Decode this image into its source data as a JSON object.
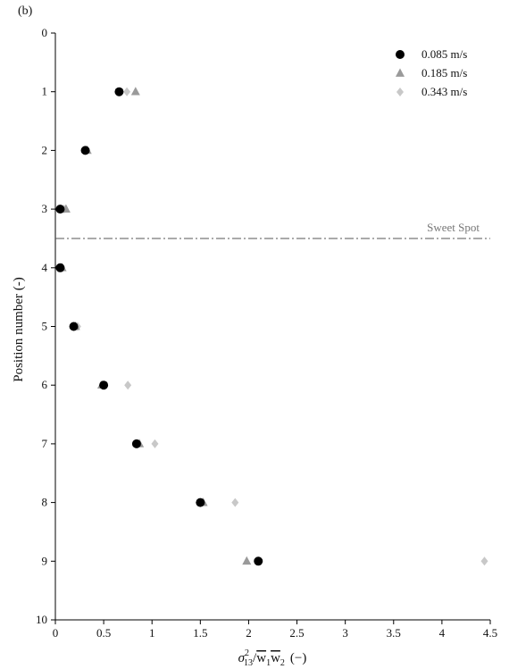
{
  "chart_data": {
    "type": "scatter",
    "panel_label": "(b)",
    "ylabel": "Position number (-)",
    "xlabel_parts": {
      "sigma": "σ",
      "sigma_sub": "13",
      "sigma_sup": "2",
      "slash": "/",
      "den_w1": "w",
      "den_w1_sub": "1",
      "den_w2": "w",
      "den_w2_sub": "2",
      "unit": "(−)"
    },
    "xlim": [
      0,
      4.5
    ],
    "ylim": [
      0,
      10
    ],
    "y_inverted": true,
    "x_ticks": [
      "0",
      "0.5",
      "1",
      "1.5",
      "2",
      "2.5",
      "3",
      "3.5",
      "4",
      "4.5"
    ],
    "y_ticks": [
      "0",
      "1",
      "2",
      "3",
      "4",
      "5",
      "6",
      "7",
      "8",
      "9",
      "10"
    ],
    "legend_position": "top-right",
    "reference_line": {
      "y": 3.5,
      "style": "dash-dot",
      "label": "Sweet Spot",
      "color": "#555555"
    },
    "series": [
      {
        "name": "0.085 m/s",
        "marker": "circle",
        "color": "#000000",
        "points": [
          [
            0.66,
            1
          ],
          [
            0.31,
            2
          ],
          [
            0.05,
            3
          ],
          [
            0.05,
            4
          ],
          [
            0.19,
            5
          ],
          [
            0.5,
            6
          ],
          [
            0.84,
            7
          ],
          [
            1.5,
            8
          ],
          [
            2.1,
            9
          ]
        ]
      },
      {
        "name": "0.185 m/s",
        "marker": "triangle",
        "color": "#9a9a9a",
        "points": [
          [
            0.83,
            1
          ],
          [
            0.33,
            2
          ],
          [
            0.11,
            3
          ],
          [
            0.07,
            4
          ],
          [
            0.21,
            5
          ],
          [
            0.48,
            6
          ],
          [
            0.87,
            7
          ],
          [
            1.53,
            8
          ],
          [
            1.98,
            9
          ]
        ]
      },
      {
        "name": "0.343 m/s",
        "marker": "diamond",
        "color": "#c8c8c8",
        "points": [
          [
            0.74,
            1
          ],
          [
            0.3,
            2
          ],
          [
            0.09,
            3
          ],
          [
            0.06,
            4
          ],
          [
            0.23,
            5
          ],
          [
            0.75,
            6
          ],
          [
            1.03,
            7
          ],
          [
            1.86,
            8
          ],
          [
            4.44,
            9
          ]
        ]
      }
    ]
  }
}
